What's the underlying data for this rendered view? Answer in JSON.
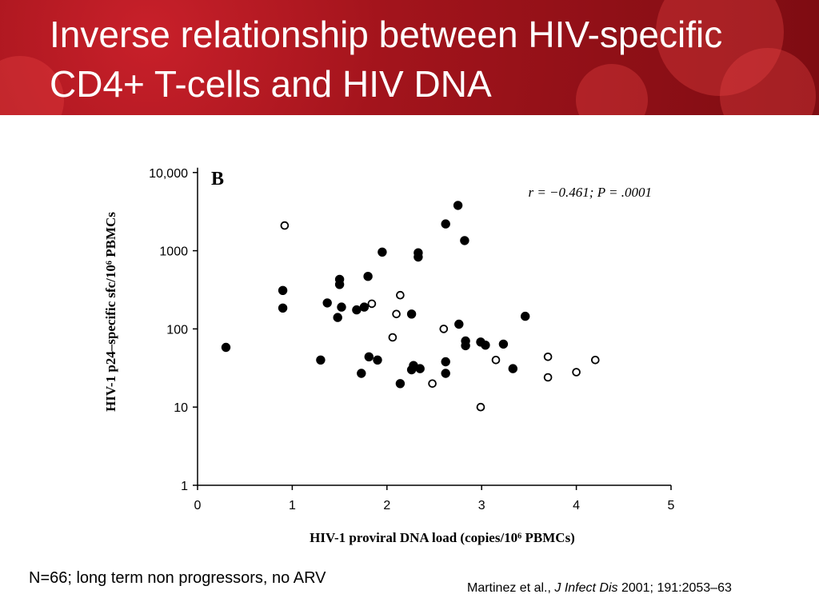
{
  "slide": {
    "title": "Inverse relationship between HIV-specific CD4+ T-cells and HIV DNA",
    "footnote": "N=66; long term non progressors, no ARV",
    "citation": {
      "authors": "Martinez et al., ",
      "journal": "J Infect Dis",
      "rest": " 2001; 191:2053–63"
    },
    "colors": {
      "banner": "#a3141c",
      "title_text": "#ffffff"
    }
  },
  "chart_data": {
    "type": "scatter",
    "panel_label": "B",
    "annotation": "r = −0.461; P = .0001",
    "xlabel": "HIV-1 proviral DNA load (copies/10⁶ PBMCs)",
    "ylabel": "HIV-1 p24–specific sfc/10⁶ PBMCs",
    "xlim": [
      0,
      5
    ],
    "ylim": [
      1,
      10000
    ],
    "yscale": "log",
    "x_ticks": [
      "0",
      "1",
      "2",
      "3",
      "4",
      "5"
    ],
    "y_ticks": [
      {
        "value": 1,
        "label": "1"
      },
      {
        "value": 10,
        "label": "10"
      },
      {
        "value": 100,
        "label": "100"
      },
      {
        "value": 1000,
        "label": "1000"
      },
      {
        "value": 10000,
        "label": "10,000"
      }
    ],
    "grid": false,
    "series": [
      {
        "marker": "filled-circle",
        "points": [
          [
            0.3,
            58
          ],
          [
            0.9,
            310
          ],
          [
            0.9,
            185
          ],
          [
            1.3,
            40
          ],
          [
            1.37,
            215
          ],
          [
            1.48,
            140
          ],
          [
            1.5,
            430
          ],
          [
            1.5,
            370
          ],
          [
            1.52,
            190
          ],
          [
            1.68,
            175
          ],
          [
            1.73,
            27
          ],
          [
            1.76,
            190
          ],
          [
            1.8,
            470
          ],
          [
            1.81,
            44
          ],
          [
            1.9,
            40
          ],
          [
            1.95,
            960
          ],
          [
            2.14,
            20
          ],
          [
            2.26,
            155
          ],
          [
            2.26,
            30
          ],
          [
            2.28,
            34
          ],
          [
            2.33,
            940
          ],
          [
            2.33,
            830
          ],
          [
            2.35,
            31
          ],
          [
            2.62,
            2200
          ],
          [
            2.62,
            27
          ],
          [
            2.62,
            38
          ],
          [
            2.75,
            3800
          ],
          [
            2.76,
            115
          ],
          [
            2.82,
            1350
          ],
          [
            2.83,
            70
          ],
          [
            2.83,
            61
          ],
          [
            2.99,
            68
          ],
          [
            3.04,
            62
          ],
          [
            3.23,
            64
          ],
          [
            3.33,
            31
          ],
          [
            3.46,
            145
          ]
        ]
      },
      {
        "marker": "open-circle",
        "points": [
          [
            0.92,
            2100
          ],
          [
            1.84,
            210
          ],
          [
            2.06,
            78
          ],
          [
            2.1,
            155
          ],
          [
            2.14,
            270
          ],
          [
            2.48,
            20
          ],
          [
            2.6,
            100
          ],
          [
            2.99,
            10
          ],
          [
            3.15,
            40
          ],
          [
            3.7,
            44
          ],
          [
            3.7,
            24
          ],
          [
            4.0,
            28
          ],
          [
            4.2,
            40
          ]
        ]
      }
    ]
  }
}
